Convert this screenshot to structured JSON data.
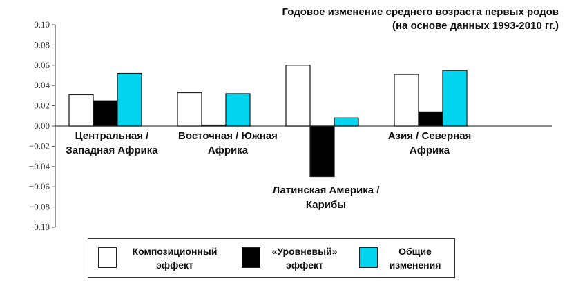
{
  "chart_data": {
    "type": "bar",
    "title": "Годовое изменение среднего возраста первых родов\n(на основе данных 1993-2010 гг.)",
    "categories": [
      "Центральная /\nЗападная Африка",
      "Восточная / Южная\nАфрика",
      "Латинская Америка /\nКарибы",
      "Азия / Северная\nАфрика"
    ],
    "series": [
      {
        "name": "Композиционный\nэффект",
        "color": "#ffffff",
        "values": [
          0.031,
          0.033,
          0.06,
          0.051
        ]
      },
      {
        "name": "«Уровневый»\nэффект",
        "color": "#000000",
        "values": [
          0.025,
          0.001,
          -0.05,
          0.014
        ]
      },
      {
        "name": "Общие\nизменения",
        "color": "#00d4ee",
        "values": [
          0.052,
          0.032,
          0.008,
          0.055
        ]
      }
    ],
    "ylim": [
      -0.1,
      0.1
    ],
    "yticks": [
      "0.10",
      "0.08",
      "0.06",
      "0.04",
      "0.02",
      "0.00",
      "−0.02",
      "−0.04",
      "−0.06",
      "−0.08",
      "−0.10"
    ],
    "xlabel": "",
    "ylabel": "",
    "grid": false,
    "legend_position": "bottom"
  }
}
